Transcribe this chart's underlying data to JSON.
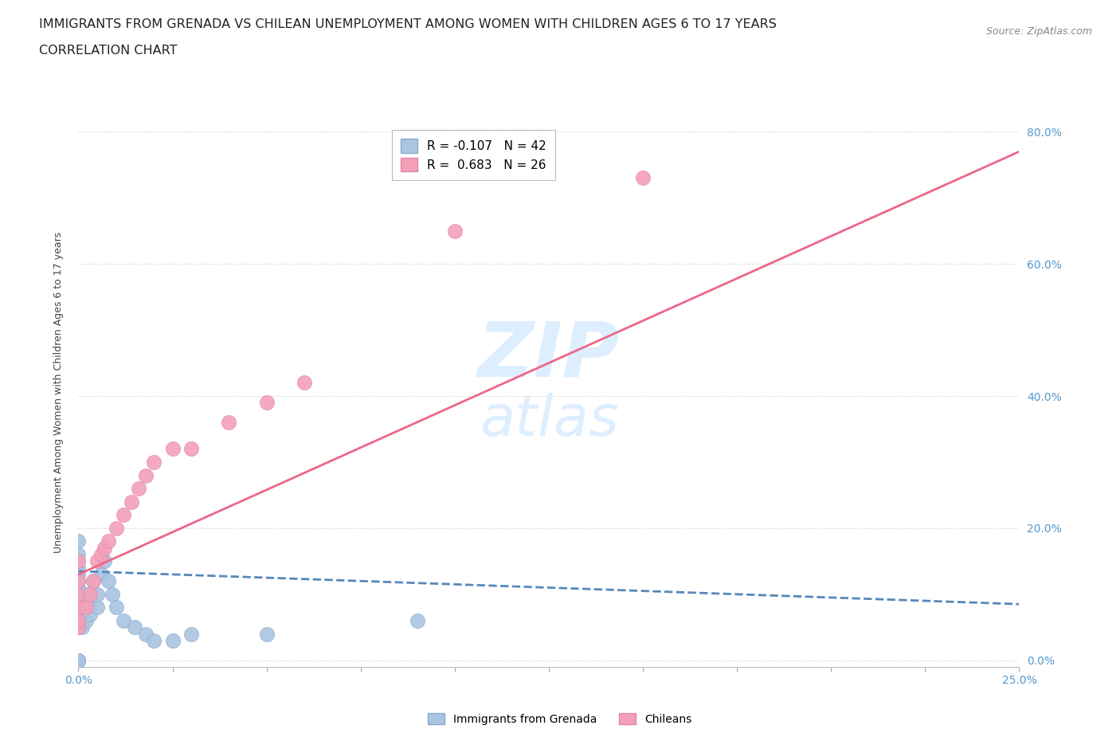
{
  "title_line1": "IMMIGRANTS FROM GRENADA VS CHILEAN UNEMPLOYMENT AMONG WOMEN WITH CHILDREN AGES 6 TO 17 YEARS",
  "title_line2": "CORRELATION CHART",
  "source_text": "Source: ZipAtlas.com",
  "ylabel_label": "Unemployment Among Women with Children Ages 6 to 17 years",
  "legend_entry1": "R = -0.107   N = 42",
  "legend_entry2": "R =  0.683   N = 26",
  "legend_label1": "Immigrants from Grenada",
  "legend_label2": "Chileans",
  "color_blue": "#aac4e2",
  "color_pink": "#f4a0b8",
  "color_blue_line": "#5588bb",
  "color_pink_line": "#ee6688",
  "color_watermark": "#ddeeff",
  "xlim": [
    0.0,
    0.25
  ],
  "ylim": [
    -0.01,
    0.82
  ],
  "yticks": [
    0.0,
    0.2,
    0.4,
    0.6,
    0.8
  ],
  "ytick_labels": [
    "0.0%",
    "20.0%",
    "40.0%",
    "60.0%",
    "80.0%"
  ],
  "xticks": [
    0.0,
    0.025,
    0.05,
    0.075,
    0.1,
    0.125,
    0.15,
    0.175,
    0.2,
    0.225,
    0.25
  ],
  "xtick_labels_show": {
    "0.0": "0.0%",
    "0.25": "25.0%"
  },
  "grenada_x": [
    0.0,
    0.0,
    0.0,
    0.0,
    0.0,
    0.0,
    0.0,
    0.0,
    0.0,
    0.0,
    0.0,
    0.0,
    0.0,
    0.0,
    0.0,
    0.0,
    0.0,
    0.0,
    0.0,
    0.0,
    0.001,
    0.001,
    0.002,
    0.002,
    0.003,
    0.003,
    0.004,
    0.005,
    0.005,
    0.006,
    0.007,
    0.008,
    0.009,
    0.01,
    0.012,
    0.015,
    0.018,
    0.02,
    0.025,
    0.03,
    0.05,
    0.09
  ],
  "grenada_y": [
    0.0,
    0.0,
    0.0,
    0.0,
    0.0,
    0.0,
    0.0,
    0.0,
    0.05,
    0.07,
    0.08,
    0.09,
    0.1,
    0.11,
    0.12,
    0.13,
    0.14,
    0.15,
    0.16,
    0.18,
    0.05,
    0.08,
    0.06,
    0.1,
    0.07,
    0.09,
    0.12,
    0.08,
    0.1,
    0.13,
    0.15,
    0.12,
    0.1,
    0.08,
    0.06,
    0.05,
    0.04,
    0.03,
    0.03,
    0.04,
    0.04,
    0.06
  ],
  "chilean_x": [
    0.0,
    0.0,
    0.0,
    0.0,
    0.0,
    0.0,
    0.002,
    0.003,
    0.004,
    0.005,
    0.006,
    0.007,
    0.008,
    0.01,
    0.012,
    0.014,
    0.016,
    0.018,
    0.02,
    0.025,
    0.03,
    0.04,
    0.05,
    0.06,
    0.1,
    0.15
  ],
  "chilean_y": [
    0.05,
    0.06,
    0.08,
    0.1,
    0.12,
    0.15,
    0.08,
    0.1,
    0.12,
    0.15,
    0.16,
    0.17,
    0.18,
    0.2,
    0.22,
    0.24,
    0.26,
    0.28,
    0.3,
    0.32,
    0.32,
    0.36,
    0.39,
    0.42,
    0.65,
    0.73
  ],
  "title_fontsize": 11.5,
  "subtitle_fontsize": 11.5,
  "axis_label_fontsize": 9,
  "tick_fontsize": 10,
  "source_fontsize": 9
}
